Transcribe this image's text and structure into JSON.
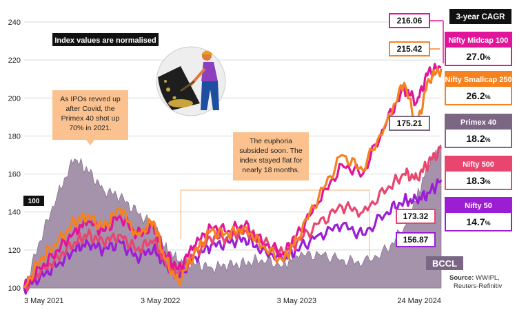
{
  "chart_data": {
    "type": "line",
    "note_normalised": "Index values are normalised",
    "base_label": "100",
    "xlim": [
      "2021-05-03",
      "2024-05-24"
    ],
    "ylim": [
      100,
      240
    ],
    "yticks": [
      100,
      120,
      140,
      160,
      180,
      200,
      220,
      240
    ],
    "xticks": [
      {
        "date": "2021-05-03",
        "label": "3 May 2021"
      },
      {
        "date": "2022-05-03",
        "label": "3 May 2022"
      },
      {
        "date": "2023-05-03",
        "label": "3 May 2023"
      },
      {
        "date": "2024-05-24",
        "label": "24 May 2024"
      }
    ],
    "legend_header": "3-year CAGR",
    "series": [
      {
        "name": "Nifty Midcap 100",
        "cagr": "27.0",
        "end_value": "216.06",
        "color": "#e0159a",
        "points": [
          [
            "2021-05-03",
            100
          ],
          [
            "2021-06-15",
            110
          ],
          [
            "2021-08-01",
            120
          ],
          [
            "2021-09-15",
            130
          ],
          [
            "2021-10-20",
            135
          ],
          [
            "2021-12-01",
            130
          ],
          [
            "2022-01-15",
            138
          ],
          [
            "2022-03-01",
            128
          ],
          [
            "2022-04-15",
            132
          ],
          [
            "2022-05-15",
            118
          ],
          [
            "2022-06-20",
            110
          ],
          [
            "2022-08-01",
            122
          ],
          [
            "2022-09-15",
            132
          ],
          [
            "2022-11-01",
            130
          ],
          [
            "2022-12-15",
            133
          ],
          [
            "2023-01-30",
            124
          ],
          [
            "2023-03-28",
            118
          ],
          [
            "2023-05-03",
            128
          ],
          [
            "2023-07-01",
            145
          ],
          [
            "2023-09-01",
            165
          ],
          [
            "2023-10-27",
            160
          ],
          [
            "2023-12-31",
            188
          ],
          [
            "2024-02-15",
            205
          ],
          [
            "2024-03-20",
            198
          ],
          [
            "2024-04-20",
            214
          ],
          [
            "2024-05-24",
            216.06
          ]
        ]
      },
      {
        "name": "Nifty Smallcap 250",
        "cagr": "26.2",
        "end_value": "215.42",
        "color": "#f5821f",
        "points": [
          [
            "2021-05-03",
            100
          ],
          [
            "2021-06-15",
            115
          ],
          [
            "2021-08-01",
            124
          ],
          [
            "2021-09-15",
            135
          ],
          [
            "2021-10-20",
            138
          ],
          [
            "2021-12-01",
            132
          ],
          [
            "2022-01-15",
            142
          ],
          [
            "2022-03-01",
            128
          ],
          [
            "2022-04-15",
            135
          ],
          [
            "2022-05-15",
            115
          ],
          [
            "2022-06-20",
            103
          ],
          [
            "2022-08-01",
            118
          ],
          [
            "2022-09-15",
            130
          ],
          [
            "2022-11-01",
            128
          ],
          [
            "2022-12-15",
            132
          ],
          [
            "2023-01-30",
            122
          ],
          [
            "2023-03-28",
            114
          ],
          [
            "2023-05-03",
            126
          ],
          [
            "2023-07-01",
            148
          ],
          [
            "2023-09-01",
            170
          ],
          [
            "2023-10-27",
            162
          ],
          [
            "2023-12-31",
            188
          ],
          [
            "2024-02-15",
            208
          ],
          [
            "2024-03-20",
            185
          ],
          [
            "2024-04-20",
            210
          ],
          [
            "2024-05-24",
            215.42
          ]
        ]
      },
      {
        "name": "Primex 40",
        "cagr": "18.2",
        "end_value": "175.21",
        "color": "#7b6684",
        "fill": "#a493ab",
        "points": [
          [
            "2021-05-03",
            100
          ],
          [
            "2021-06-15",
            125
          ],
          [
            "2021-08-01",
            150
          ],
          [
            "2021-09-15",
            168
          ],
          [
            "2021-10-20",
            162
          ],
          [
            "2021-12-01",
            152
          ],
          [
            "2022-01-15",
            148
          ],
          [
            "2022-03-01",
            140
          ],
          [
            "2022-04-15",
            132
          ],
          [
            "2022-05-15",
            122
          ],
          [
            "2022-06-20",
            114
          ],
          [
            "2022-08-01",
            113
          ],
          [
            "2022-09-15",
            111
          ],
          [
            "2022-11-01",
            112
          ],
          [
            "2022-12-15",
            113
          ],
          [
            "2023-01-30",
            115
          ],
          [
            "2023-03-28",
            112
          ],
          [
            "2023-05-03",
            117
          ],
          [
            "2023-07-01",
            118
          ],
          [
            "2023-09-01",
            115
          ],
          [
            "2023-10-27",
            113
          ],
          [
            "2023-12-31",
            120
          ],
          [
            "2024-02-15",
            132
          ],
          [
            "2024-03-20",
            148
          ],
          [
            "2024-04-20",
            165
          ],
          [
            "2024-05-24",
            175.21
          ]
        ]
      },
      {
        "name": "Nifty 500",
        "cagr": "18.3",
        "end_value": "173.32",
        "color": "#e8466f",
        "points": [
          [
            "2021-05-03",
            100
          ],
          [
            "2021-06-15",
            108
          ],
          [
            "2021-08-01",
            116
          ],
          [
            "2021-09-15",
            124
          ],
          [
            "2021-10-20",
            128
          ],
          [
            "2021-12-01",
            124
          ],
          [
            "2022-01-15",
            128
          ],
          [
            "2022-03-01",
            120
          ],
          [
            "2022-04-15",
            125
          ],
          [
            "2022-05-15",
            114
          ],
          [
            "2022-06-20",
            108
          ],
          [
            "2022-08-01",
            118
          ],
          [
            "2022-09-15",
            126
          ],
          [
            "2022-11-01",
            127
          ],
          [
            "2022-12-15",
            130
          ],
          [
            "2023-01-30",
            124
          ],
          [
            "2023-03-28",
            118
          ],
          [
            "2023-05-03",
            124
          ],
          [
            "2023-07-01",
            134
          ],
          [
            "2023-09-01",
            143
          ],
          [
            "2023-10-27",
            140
          ],
          [
            "2023-12-31",
            152
          ],
          [
            "2024-02-15",
            160
          ],
          [
            "2024-03-20",
            158
          ],
          [
            "2024-04-20",
            166
          ],
          [
            "2024-05-24",
            173.32
          ]
        ]
      },
      {
        "name": "Nifty 50",
        "cagr": "14.7",
        "end_value": "156.87",
        "color": "#9b1ed4",
        "points": [
          [
            "2021-05-03",
            100
          ],
          [
            "2021-06-15",
            106
          ],
          [
            "2021-08-01",
            112
          ],
          [
            "2021-09-15",
            120
          ],
          [
            "2021-10-20",
            124
          ],
          [
            "2021-12-01",
            120
          ],
          [
            "2022-01-15",
            124
          ],
          [
            "2022-03-01",
            116
          ],
          [
            "2022-04-15",
            121
          ],
          [
            "2022-05-15",
            112
          ],
          [
            "2022-06-20",
            106
          ],
          [
            "2022-08-01",
            116
          ],
          [
            "2022-09-15",
            122
          ],
          [
            "2022-11-01",
            124
          ],
          [
            "2022-12-15",
            126
          ],
          [
            "2023-01-30",
            120
          ],
          [
            "2023-03-28",
            115
          ],
          [
            "2023-05-03",
            120
          ],
          [
            "2023-07-01",
            128
          ],
          [
            "2023-09-01",
            133
          ],
          [
            "2023-10-27",
            128
          ],
          [
            "2023-12-31",
            140
          ],
          [
            "2024-02-15",
            146
          ],
          [
            "2024-03-20",
            146
          ],
          [
            "2024-04-20",
            150
          ],
          [
            "2024-05-24",
            156.87
          ]
        ]
      }
    ],
    "annotations": [
      {
        "text": [
          "As IPOs revved up",
          "after Covid, the",
          "Primex 40 shot up",
          "70% in 2021."
        ]
      },
      {
        "text": [
          "The euphoria",
          "subsided soon. The",
          "index stayed flat for",
          "nearly 18 months."
        ]
      }
    ],
    "watermark": "BCCL",
    "source_label": "Source:",
    "source_text": "WWIPL,",
    "source_text2": "Reuters-Refinitiv"
  }
}
